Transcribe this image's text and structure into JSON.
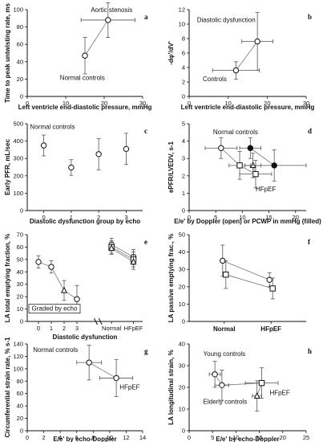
{
  "chart_data": [
    {
      "id": "a",
      "type": "scatter",
      "panel_label": "a",
      "xlabel": "Left ventricle end-diastolic pressure, mmHg",
      "ylabel": "Time to peak untwisting rate, ms",
      "xlim": [
        0,
        30
      ],
      "ylim": [
        0,
        100
      ],
      "xticks": [
        0,
        10,
        20,
        30
      ],
      "yticks": [
        0,
        20,
        40,
        60,
        80,
        100
      ],
      "connect": true,
      "points": [
        {
          "x": 15,
          "y": 47,
          "xerr": 0,
          "yerr": 21,
          "marker": "open-circle"
        },
        {
          "x": 21,
          "y": 88,
          "xerr": 7,
          "yerr": 20,
          "marker": "open-circle"
        }
      ],
      "annotations": [
        {
          "text": "Aortic stenosis",
          "x": 16.5,
          "y": 97
        },
        {
          "text": "Normal controls",
          "x": 8.5,
          "y": 19
        }
      ]
    },
    {
      "id": "b",
      "type": "scatter",
      "panel_label": "b",
      "xlabel": "Left ventricle end-diastolic pressure, mmHg",
      "ylabel": "-dφ'/dV'",
      "xlim": [
        0,
        30
      ],
      "ylim": [
        0,
        12
      ],
      "xticks": [
        0,
        10,
        20,
        30
      ],
      "yticks": [
        0,
        2,
        4,
        6,
        8,
        10,
        12
      ],
      "connect": true,
      "points": [
        {
          "x": 12,
          "y": 3.6,
          "xerr": 6,
          "yerr": 1.2,
          "marker": "open-circle"
        },
        {
          "x": 17.5,
          "y": 7.6,
          "xerr": 4,
          "yerr": 4,
          "marker": "open-circle"
        }
      ],
      "annotations": [
        {
          "text": "Diastolic dysfunction",
          "x": 2,
          "y": 10.3
        },
        {
          "text": "Controls",
          "x": 3.5,
          "y": 2.1
        }
      ]
    },
    {
      "id": "c",
      "type": "scatter",
      "panel_label": "c",
      "xlabel": "Diastolic dysfunction group by echo",
      "ylabel": "Early PFR, mL/sec",
      "xlim": [
        -0.6,
        3.6
      ],
      "ylim": [
        0,
        500
      ],
      "xticks": [
        0,
        1,
        2,
        3
      ],
      "yticks": [
        0,
        100,
        200,
        300,
        400,
        500
      ],
      "connect": false,
      "points": [
        {
          "x": 0,
          "y": 375,
          "xerr": 0,
          "yerr": 60,
          "marker": "open-circle"
        },
        {
          "x": 1,
          "y": 248,
          "xerr": 0,
          "yerr": 45,
          "marker": "open-circle"
        },
        {
          "x": 2,
          "y": 325,
          "xerr": 0,
          "yerr": 90,
          "marker": "open-circle"
        },
        {
          "x": 3,
          "y": 355,
          "xerr": 0,
          "yerr": 90,
          "marker": "open-circle"
        }
      ],
      "annotations": [
        {
          "text": "Normal controls",
          "x": -0.5,
          "y": 470
        }
      ]
    },
    {
      "id": "d",
      "type": "scatter",
      "panel_label": "d",
      "xlabel": "E/e' by Doppler (open) or PCWP in mmHg (filled)",
      "ylabel": "ePFR/LVEDV, s-1",
      "xlim": [
        0,
        22
      ],
      "ylim": [
        0,
        5
      ],
      "xticks": [
        0,
        5,
        10,
        15,
        20
      ],
      "yticks": [
        0,
        1,
        2,
        3,
        4,
        5
      ],
      "connect": true,
      "points": [
        {
          "x": 6,
          "y": 3.6,
          "xerr": 3,
          "yerr": 0.6,
          "marker": "open-circle"
        },
        {
          "x": 9.5,
          "y": 2.6,
          "xerr": 2,
          "yerr": 0.8,
          "marker": "open-square"
        },
        {
          "x": 12.5,
          "y": 2.1,
          "xerr": 3,
          "yerr": 0.8,
          "marker": "open-square"
        },
        {
          "x": 11.5,
          "y": 3.6,
          "xerr": 2,
          "yerr": 0.6,
          "marker": "filled-circle"
        },
        {
          "x": 12,
          "y": 2.6,
          "xerr": 1.5,
          "yerr": 0.7,
          "marker": "open-triangle"
        },
        {
          "x": 16,
          "y": 2.6,
          "xerr": 6,
          "yerr": 0.9,
          "marker": "filled-circle"
        }
      ],
      "annotations": [
        {
          "text": "Normal controls",
          "x": 4.5,
          "y": 4.4
        },
        {
          "text": "HFpEF",
          "x": 12.5,
          "y": 1.1
        }
      ]
    },
    {
      "id": "e",
      "type": "scatter",
      "panel_label": "e",
      "xlabel": "Diastolic dysfunction",
      "ylabel": "LA total emptying fraction, %",
      "ylim": [
        0,
        70
      ],
      "yticks": [
        0,
        10,
        20,
        30,
        40,
        50,
        60,
        70
      ],
      "xticks_left": [
        "0",
        "1",
        "2",
        "3"
      ],
      "xticks_right": [
        "Normal",
        "HFpEF"
      ],
      "left_group": {
        "name": "Graded by echo",
        "points": [
          {
            "x": 0,
            "y": 48,
            "yerr": 5,
            "marker": "open-circle"
          },
          {
            "x": 1,
            "y": 44,
            "yerr": 5,
            "marker": "open-circle"
          },
          {
            "x": 2,
            "y": 25,
            "yerr": 8,
            "marker": "open-triangle"
          },
          {
            "x": 3,
            "y": 18,
            "yerr": 11,
            "marker": "open-circle"
          }
        ]
      },
      "right_group": {
        "series": [
          {
            "Normal": 62,
            "HFpEF": 52
          },
          {
            "Normal": 60,
            "HFpEF": 50
          },
          {
            "Normal": 59,
            "HFpEF": 48
          }
        ]
      },
      "annotations": [
        {
          "text": "Graded by echo"
        }
      ]
    },
    {
      "id": "f",
      "type": "scatter",
      "panel_label": "f",
      "ylabel": "LA passive emptying frac., %",
      "xticks": [
        "Normal",
        "HFpEF"
      ],
      "ylim": [
        0,
        50
      ],
      "yticks": [
        0,
        10,
        20,
        30,
        40,
        50
      ],
      "series": [
        {
          "Normal": 35,
          "HFpEF": 24,
          "err_n": 9,
          "err_h": 4
        },
        {
          "Normal": 27,
          "HFpEF": 19,
          "err_n": 8,
          "err_h": 6
        }
      ]
    },
    {
      "id": "g",
      "type": "scatter",
      "panel_label": "g",
      "xlabel": "E/e' by echo-Doppler",
      "ylabel": "Circumferential strain rate, % s-1",
      "xlim": [
        0,
        14
      ],
      "ylim": [
        0,
        140
      ],
      "xticks": [
        0,
        2,
        4,
        6,
        8,
        10,
        12,
        14
      ],
      "yticks": [
        0,
        20,
        40,
        60,
        80,
        100,
        120,
        140
      ],
      "connect": true,
      "points": [
        {
          "x": 7.5,
          "y": 110,
          "xerr": 1.5,
          "yerr": 28,
          "marker": "open-circle"
        },
        {
          "x": 10.8,
          "y": 85,
          "xerr": 2,
          "yerr": 30,
          "marker": "open-circle"
        }
      ],
      "annotations": [
        {
          "text": "Normal controls",
          "x": 0.7,
          "y": 127
        },
        {
          "text": "HFpEF",
          "x": 11.2,
          "y": 67
        }
      ]
    },
    {
      "id": "h",
      "type": "scatter",
      "panel_label": "h",
      "xlabel": "E/e' by echo-Doppler",
      "ylabel": "LA longitudinal strain, %",
      "xlim": [
        0,
        25
      ],
      "ylim": [
        0,
        40
      ],
      "xticks": [
        0,
        5,
        10,
        15,
        20,
        25
      ],
      "yticks": [
        0,
        10,
        20,
        30,
        40
      ],
      "connect": true,
      "points": [
        {
          "x": 5.5,
          "y": 26,
          "xerr": 1.2,
          "yerr": 6,
          "marker": "open-circle"
        },
        {
          "x": 7,
          "y": 21,
          "xerr": 1.5,
          "yerr": 7,
          "marker": "open-circle"
        },
        {
          "x": 15.5,
          "y": 22,
          "xerr": 3.5,
          "yerr": 7,
          "marker": "open-square"
        },
        {
          "x": 14.5,
          "y": 16,
          "xerr": 1,
          "yerr": 7,
          "marker": "open-triangle"
        }
      ],
      "annotations": [
        {
          "text": "Young controls",
          "x": 3,
          "y": 34.5
        },
        {
          "text": "Elderly controls",
          "x": 3,
          "y": 12.5
        },
        {
          "text": "HFpEF",
          "x": 17.2,
          "y": 16.5
        }
      ]
    }
  ]
}
